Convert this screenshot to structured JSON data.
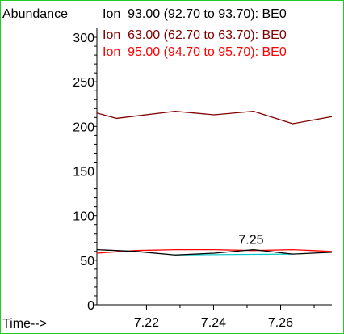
{
  "chart_data": {
    "type": "line",
    "ylabel": "Abundance",
    "xlabel": "Time-->",
    "xlim": [
      7.2052,
      7.2753
    ],
    "ylim": [
      0,
      310
    ],
    "yticks": [
      0,
      50,
      100,
      150,
      200,
      250,
      300
    ],
    "xticks": [
      7.22,
      7.24,
      7.26
    ],
    "grid": false,
    "legend_placement": "top",
    "series": [
      {
        "name": "Ion  93.00 (92.70 to 93.70): BE0",
        "color": "#000000",
        "x": [
          7.2052,
          7.2168,
          7.2285,
          7.2402,
          7.2519,
          7.2636,
          7.2753
        ],
        "y": [
          62,
          60,
          56,
          58,
          62,
          57,
          59
        ]
      },
      {
        "name": "Ion  63.00 (62.70 to 63.70): BE0",
        "color": "#800000",
        "x": [
          7.2052,
          7.211,
          7.2285,
          7.2402,
          7.2519,
          7.2636,
          7.2753
        ],
        "y": [
          215,
          209,
          217,
          213,
          217,
          203,
          211
        ]
      },
      {
        "name": "Ion  95.00 (94.70 to 95.70): BE0",
        "color": "#ff0000",
        "x": [
          7.2052,
          7.2168,
          7.2285,
          7.2402,
          7.2519,
          7.2636,
          7.2753
        ],
        "y": [
          58,
          61,
          62,
          62,
          61,
          62,
          60
        ]
      }
    ],
    "baselines": [
      {
        "color": "#00c8c8",
        "x": [
          7.2285,
          7.2636
        ],
        "y": [
          56,
          57
        ]
      }
    ],
    "annotations": [
      {
        "text": "7.25",
        "x": 7.2512,
        "y": 62
      }
    ]
  }
}
